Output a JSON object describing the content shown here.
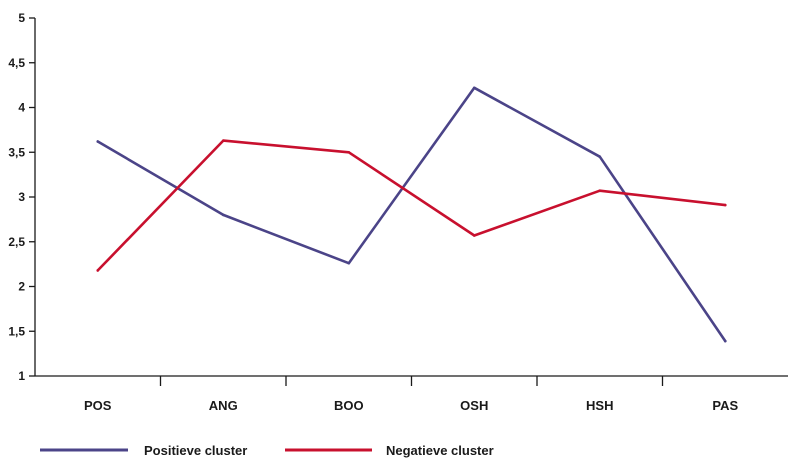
{
  "chart_data": {
    "type": "line",
    "categories": [
      "POS",
      "ANG",
      "BOO",
      "OSH",
      "HSH",
      "PAS"
    ],
    "ylim": [
      1,
      5
    ],
    "yticks": [
      "1",
      "1,5",
      "2",
      "2,5",
      "3",
      "3,5",
      "4",
      "4,5",
      "5"
    ],
    "grid": false,
    "legend_position": "bottom-left",
    "series": [
      {
        "name": "Positieve cluster",
        "color": "#4b4488",
        "values": [
          3.62,
          2.8,
          2.26,
          4.22,
          3.45,
          1.39
        ]
      },
      {
        "name": "Negatieve cluster",
        "color": "#c8102e",
        "values": [
          2.18,
          3.63,
          3.5,
          2.57,
          3.07,
          2.91
        ]
      }
    ]
  }
}
